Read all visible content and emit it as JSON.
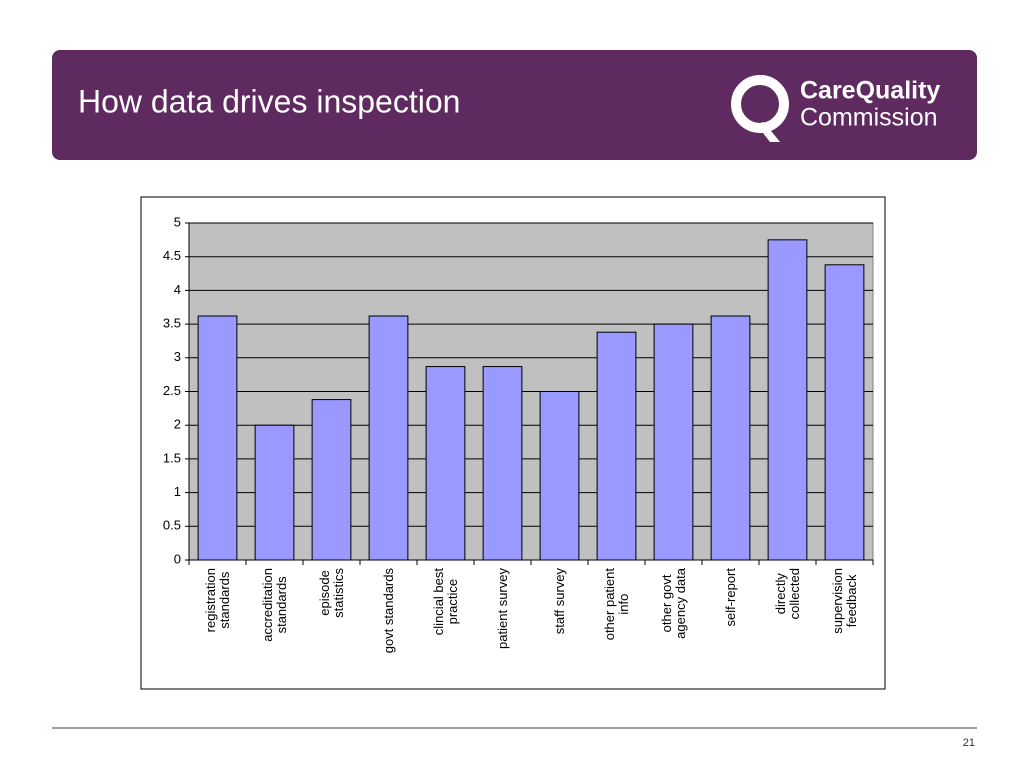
{
  "chart_data": {
    "type": "bar",
    "title": "How data drives inspection",
    "categories": [
      "registration\nstandards",
      "accreditation\nstandards",
      "episode\nstatistics",
      "govt standards",
      "clincial best\npractice",
      "patient survey",
      "staff survey",
      "other patient\ninfo",
      "other govt\nagency data",
      "self-report",
      "directly\ncollected",
      "supervision\nfeedback"
    ],
    "values": [
      3.62,
      2.0,
      2.38,
      3.62,
      2.87,
      2.87,
      2.5,
      3.38,
      3.5,
      3.62,
      4.75,
      4.38
    ],
    "color": "#9999ff",
    "plot_background": "#c0c0c0",
    "ylim": [
      0,
      5
    ],
    "yticks": [
      0,
      0.5,
      1,
      1.5,
      2,
      2.5,
      3,
      3.5,
      4,
      4.5,
      5
    ],
    "grid": true
  },
  "logo": {
    "line1": "CareQuality",
    "line2": "Commission"
  },
  "slide_number": "21"
}
